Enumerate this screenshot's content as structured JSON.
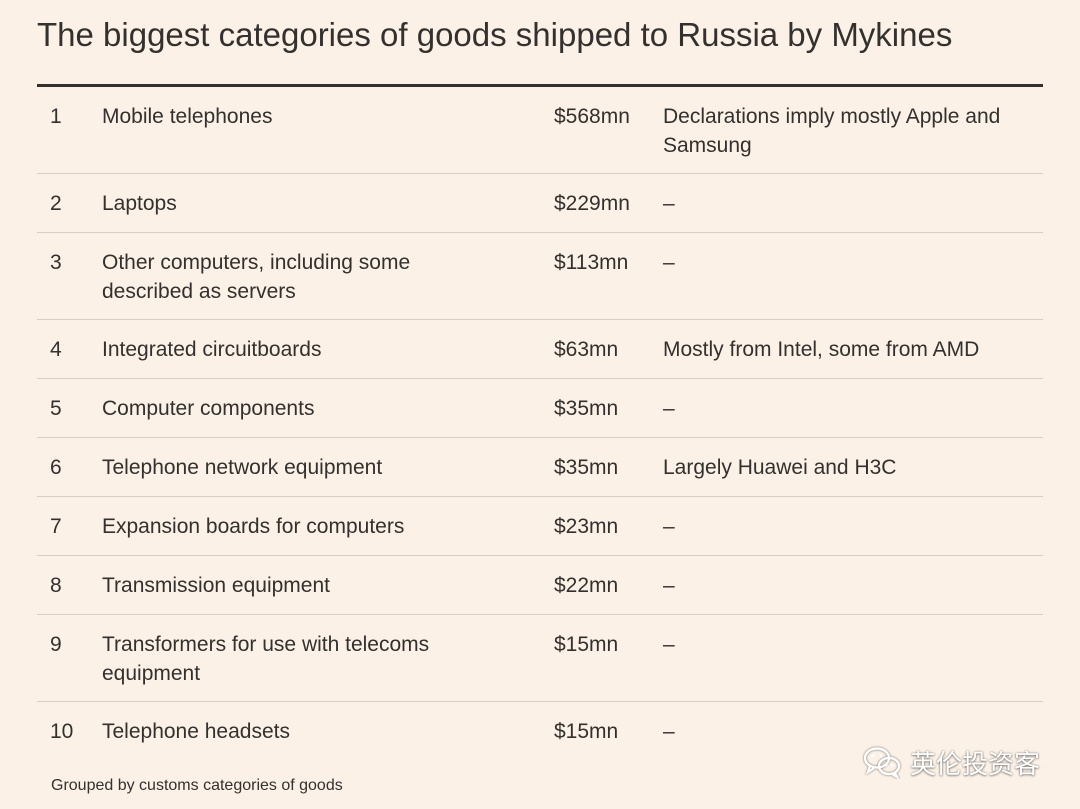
{
  "title": "The biggest categories of goods shipped to Russia by Mykines",
  "footnote": "Grouped by customs categories of goods",
  "watermark_text": "英伦投资客",
  "watermark_icon": "wechat-icon",
  "colors": {
    "background": "#fbf1e6",
    "text": "#33302e",
    "rule": "#33302e",
    "row_divider": "#d8cfc4"
  },
  "chart_data": {
    "type": "table",
    "title": "The biggest categories of goods shipped to Russia by Mykines",
    "columns": [
      "",
      "",
      "",
      ""
    ],
    "rows": [
      {
        "rank": "1",
        "category": "Mobile telephones",
        "value": "$568mn",
        "value_mn_usd": 568,
        "note": "Declarations imply mostly Apple and Samsung"
      },
      {
        "rank": "2",
        "category": "Laptops",
        "value": "$229mn",
        "value_mn_usd": 229,
        "note": "–"
      },
      {
        "rank": "3",
        "category": "Other computers, including some described as servers",
        "value": "$113mn",
        "value_mn_usd": 113,
        "note": "–"
      },
      {
        "rank": "4",
        "category": "Integrated circuitboards",
        "value": "$63mn",
        "value_mn_usd": 63,
        "note": "Mostly from Intel, some from AMD"
      },
      {
        "rank": "5",
        "category": "Computer components",
        "value": "$35mn",
        "value_mn_usd": 35,
        "note": "–"
      },
      {
        "rank": "6",
        "category": "Telephone network equipment",
        "value": "$35mn",
        "value_mn_usd": 35,
        "note": "Largely Huawei and H3C"
      },
      {
        "rank": "7",
        "category": "Expansion boards for computers",
        "value": "$23mn",
        "value_mn_usd": 23,
        "note": "–"
      },
      {
        "rank": "8",
        "category": "Transmission equipment",
        "value": "$22mn",
        "value_mn_usd": 22,
        "note": "–"
      },
      {
        "rank": "9",
        "category": "Transformers for use with telecoms equipment",
        "value": "$15mn",
        "value_mn_usd": 15,
        "note": "–"
      },
      {
        "rank": "10",
        "category": "Telephone headsets",
        "value": "$15mn",
        "value_mn_usd": 15,
        "note": "–"
      }
    ],
    "footnote": "Grouped by customs categories of goods"
  }
}
